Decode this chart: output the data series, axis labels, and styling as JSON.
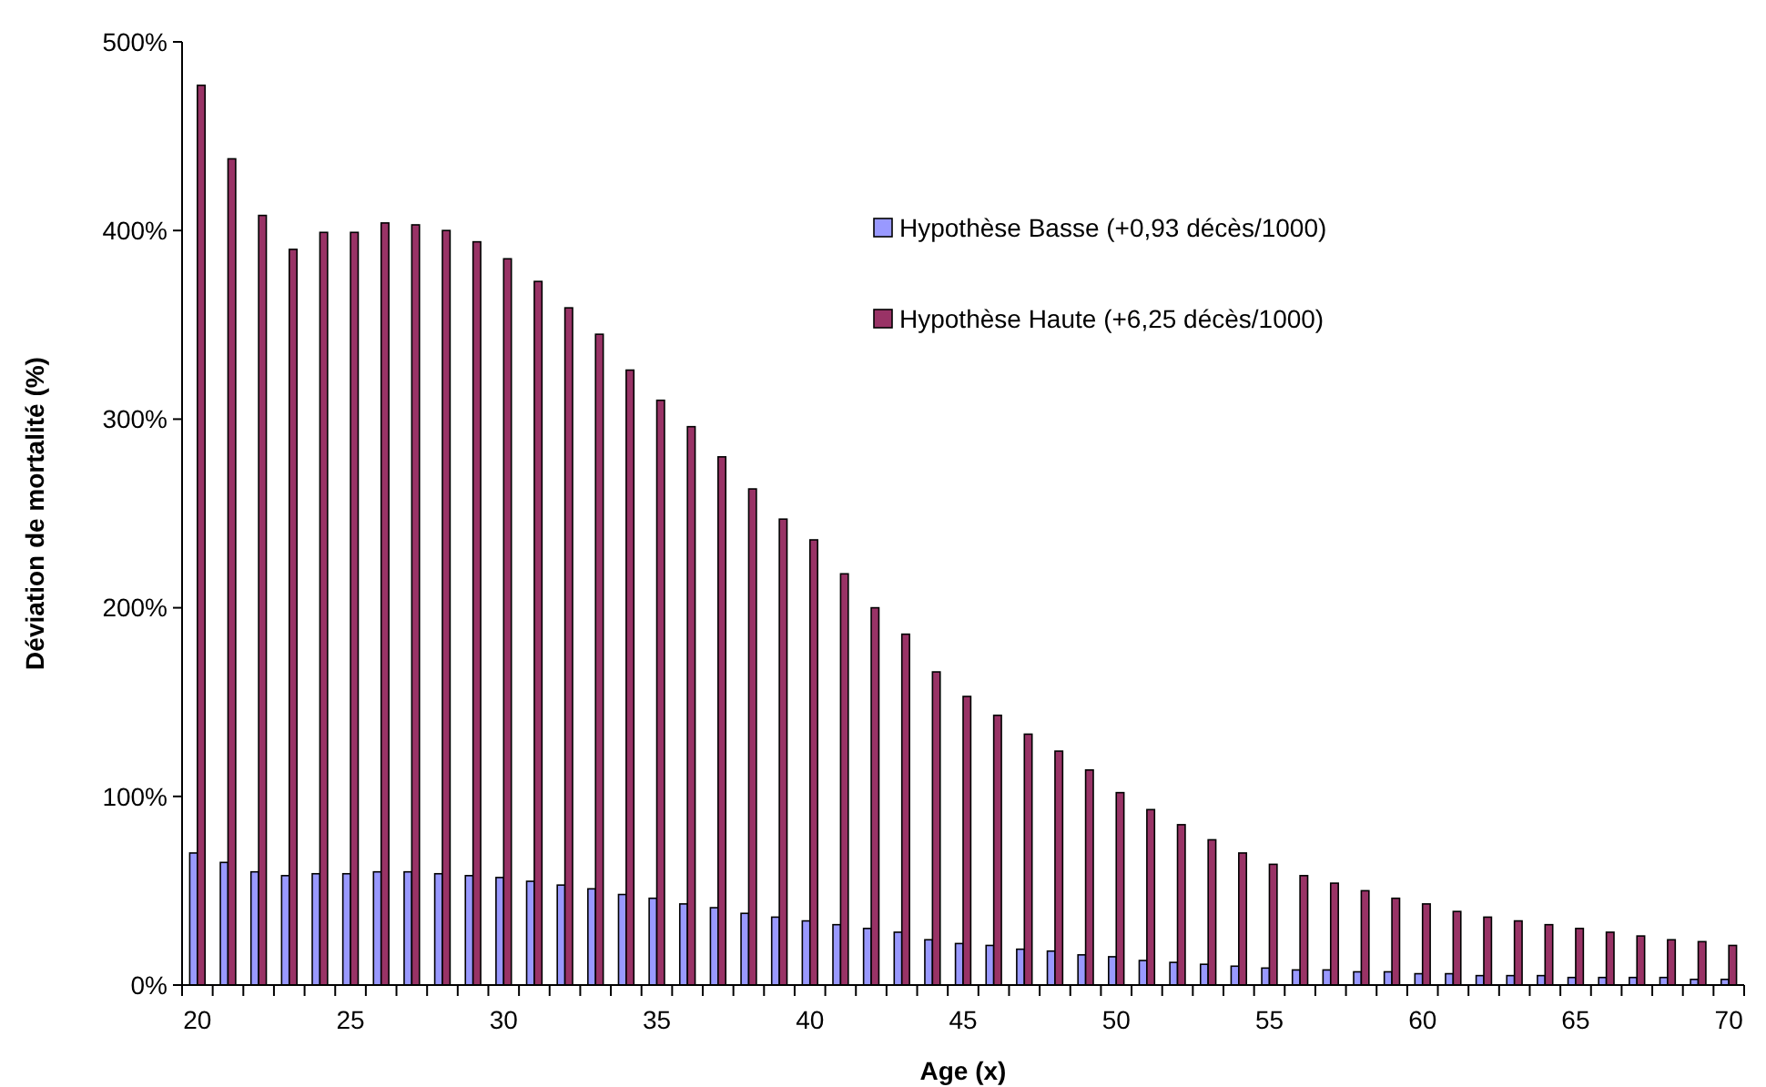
{
  "chart_data": {
    "type": "bar",
    "xlabel": "Age (x)",
    "ylabel": "Déviation de mortalité (%)",
    "categories": [
      "20",
      null,
      null,
      null,
      null,
      "25",
      null,
      null,
      null,
      null,
      "30",
      null,
      null,
      null,
      null,
      "35",
      null,
      null,
      null,
      null,
      "40",
      null,
      null,
      null,
      null,
      "45",
      null,
      null,
      null,
      null,
      "50",
      null,
      null,
      null,
      null,
      "55",
      null,
      null,
      null,
      null,
      "60",
      null,
      null,
      null,
      null,
      "65",
      null,
      null,
      null,
      null,
      "70"
    ],
    "series": [
      {
        "name": "Hypothèse Basse (+0,93 décès/1000)",
        "color": "#9999ff",
        "values": [
          70,
          65,
          60,
          58,
          59,
          59,
          60,
          60,
          59,
          58,
          57,
          55,
          53,
          51,
          48,
          46,
          43,
          41,
          38,
          36,
          34,
          32,
          30,
          28,
          24,
          22,
          21,
          19,
          18,
          16,
          15,
          13,
          12,
          11,
          10,
          9,
          8,
          8,
          7,
          7,
          6,
          6,
          5,
          5,
          5,
          4,
          4,
          4,
          4,
          3,
          3
        ]
      },
      {
        "name": "Hypothèse Haute (+6,25 décès/1000)",
        "color": "#993366",
        "values": [
          477,
          438,
          408,
          390,
          399,
          399,
          404,
          403,
          400,
          394,
          385,
          373,
          359,
          345,
          326,
          310,
          296,
          280,
          263,
          247,
          236,
          218,
          200,
          186,
          166,
          153,
          143,
          133,
          124,
          114,
          102,
          93,
          85,
          77,
          70,
          64,
          58,
          54,
          50,
          46,
          43,
          39,
          36,
          34,
          32,
          30,
          28,
          26,
          24,
          23,
          21
        ]
      }
    ],
    "ylim": [
      0,
      500
    ],
    "yticks": [
      {
        "value": 0,
        "label": "0%"
      },
      {
        "value": 100,
        "label": "100%"
      },
      {
        "value": 200,
        "label": "200%"
      },
      {
        "value": 300,
        "label": "300%"
      },
      {
        "value": 400,
        "label": "400%"
      },
      {
        "value": 500,
        "label": "500%"
      }
    ],
    "grid": false,
    "legend": "top right"
  }
}
